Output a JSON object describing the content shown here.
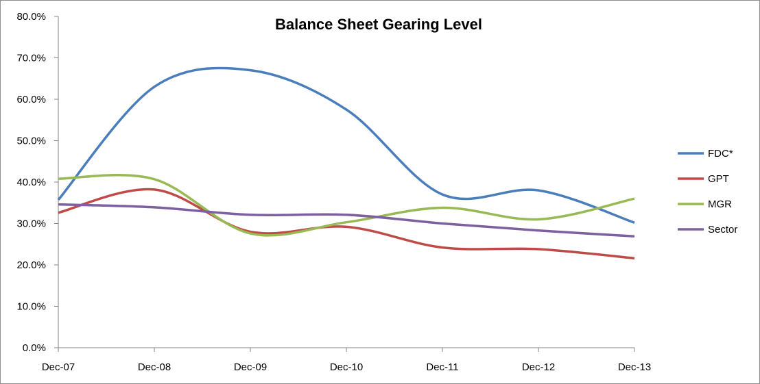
{
  "chart_data": {
    "type": "line",
    "title": "Balance Sheet Gearing Level",
    "xlabel": "",
    "ylabel": "",
    "categories": [
      "Dec-07",
      "Dec-08",
      "Dec-09",
      "Dec-10",
      "Dec-11",
      "Dec-12",
      "Dec-13"
    ],
    "ylim": [
      0,
      80
    ],
    "y_ticks": [
      "0.0%",
      "10.0%",
      "20.0%",
      "30.0%",
      "40.0%",
      "50.0%",
      "60.0%",
      "70.0%",
      "80.0%"
    ],
    "grid": false,
    "legend_position": "right",
    "series": [
      {
        "name": "FDC*",
        "color": "#4a7ebb",
        "values": [
          35.7,
          63.0,
          67.0,
          57.5,
          37.0,
          38.0,
          30.2
        ]
      },
      {
        "name": "GPT",
        "color": "#be4b48",
        "values": [
          32.6,
          38.2,
          28.0,
          29.2,
          24.2,
          23.8,
          21.6
        ]
      },
      {
        "name": "MGR",
        "color": "#98b954",
        "values": [
          40.8,
          40.7,
          27.6,
          30.3,
          33.8,
          31.0,
          36.0
        ]
      },
      {
        "name": "Sector",
        "color": "#7d60a0",
        "values": [
          34.6,
          33.9,
          32.1,
          32.1,
          30.0,
          28.3,
          26.9
        ]
      }
    ]
  }
}
